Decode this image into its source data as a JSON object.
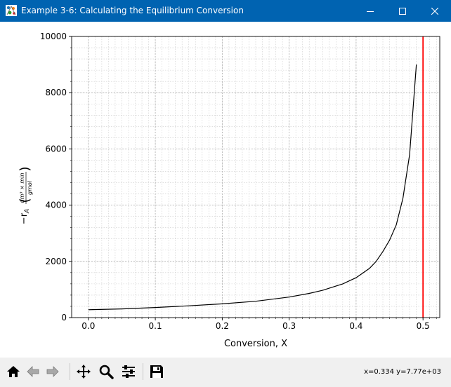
{
  "window": {
    "title": "Example 3-6: Calculating the Equilibrium Conversion",
    "icons": [
      "app-icon",
      "minimize-icon",
      "maximize-icon",
      "close-icon"
    ]
  },
  "colors": {
    "titlebar": "#0063b1",
    "curve": "#000000",
    "vline": "#ff0000",
    "grid": "#b0b0b0",
    "toolbar": "#f0f0f0"
  },
  "chart_data": {
    "type": "line",
    "xlabel": "Conversion, X",
    "ylabel_main": "−r",
    "ylabel_sub": "A",
    "ylabel_num": "dm³ × min",
    "ylabel_den": "gmol",
    "xlim": [
      -0.025,
      0.525
    ],
    "ylim": [
      0,
      10000
    ],
    "xticks": [
      0.0,
      0.1,
      0.2,
      0.3,
      0.4,
      0.5
    ],
    "xtick_labels": [
      "0.0",
      "0.1",
      "0.2",
      "0.3",
      "0.4",
      "0.5"
    ],
    "yticks": [
      0,
      2000,
      4000,
      6000,
      8000,
      10000
    ],
    "ytick_labels": [
      "0",
      "2000",
      "4000",
      "6000",
      "8000",
      "10000"
    ],
    "grid": true,
    "minor_grid": true,
    "series": [
      {
        "x": [
          0.0,
          0.05,
          0.1,
          0.15,
          0.2,
          0.25,
          0.3,
          0.33,
          0.35,
          0.38,
          0.4,
          0.42,
          0.43,
          0.44,
          0.45,
          0.46,
          0.47,
          0.48,
          0.49
        ],
        "y": [
          280,
          310,
          360,
          420,
          490,
          580,
          730,
          860,
          970,
          1200,
          1420,
          1750,
          2000,
          2350,
          2750,
          3300,
          4250,
          5800,
          9000
        ]
      }
    ],
    "vline": {
      "x": 0.5
    }
  },
  "toolbar": {
    "buttons": [
      "home-icon",
      "back-icon",
      "forward-icon",
      "pan-icon",
      "zoom-icon",
      "configure-subplots-icon",
      "save-icon"
    ],
    "coords_text": "x=0.334 y=7.77e+03"
  }
}
